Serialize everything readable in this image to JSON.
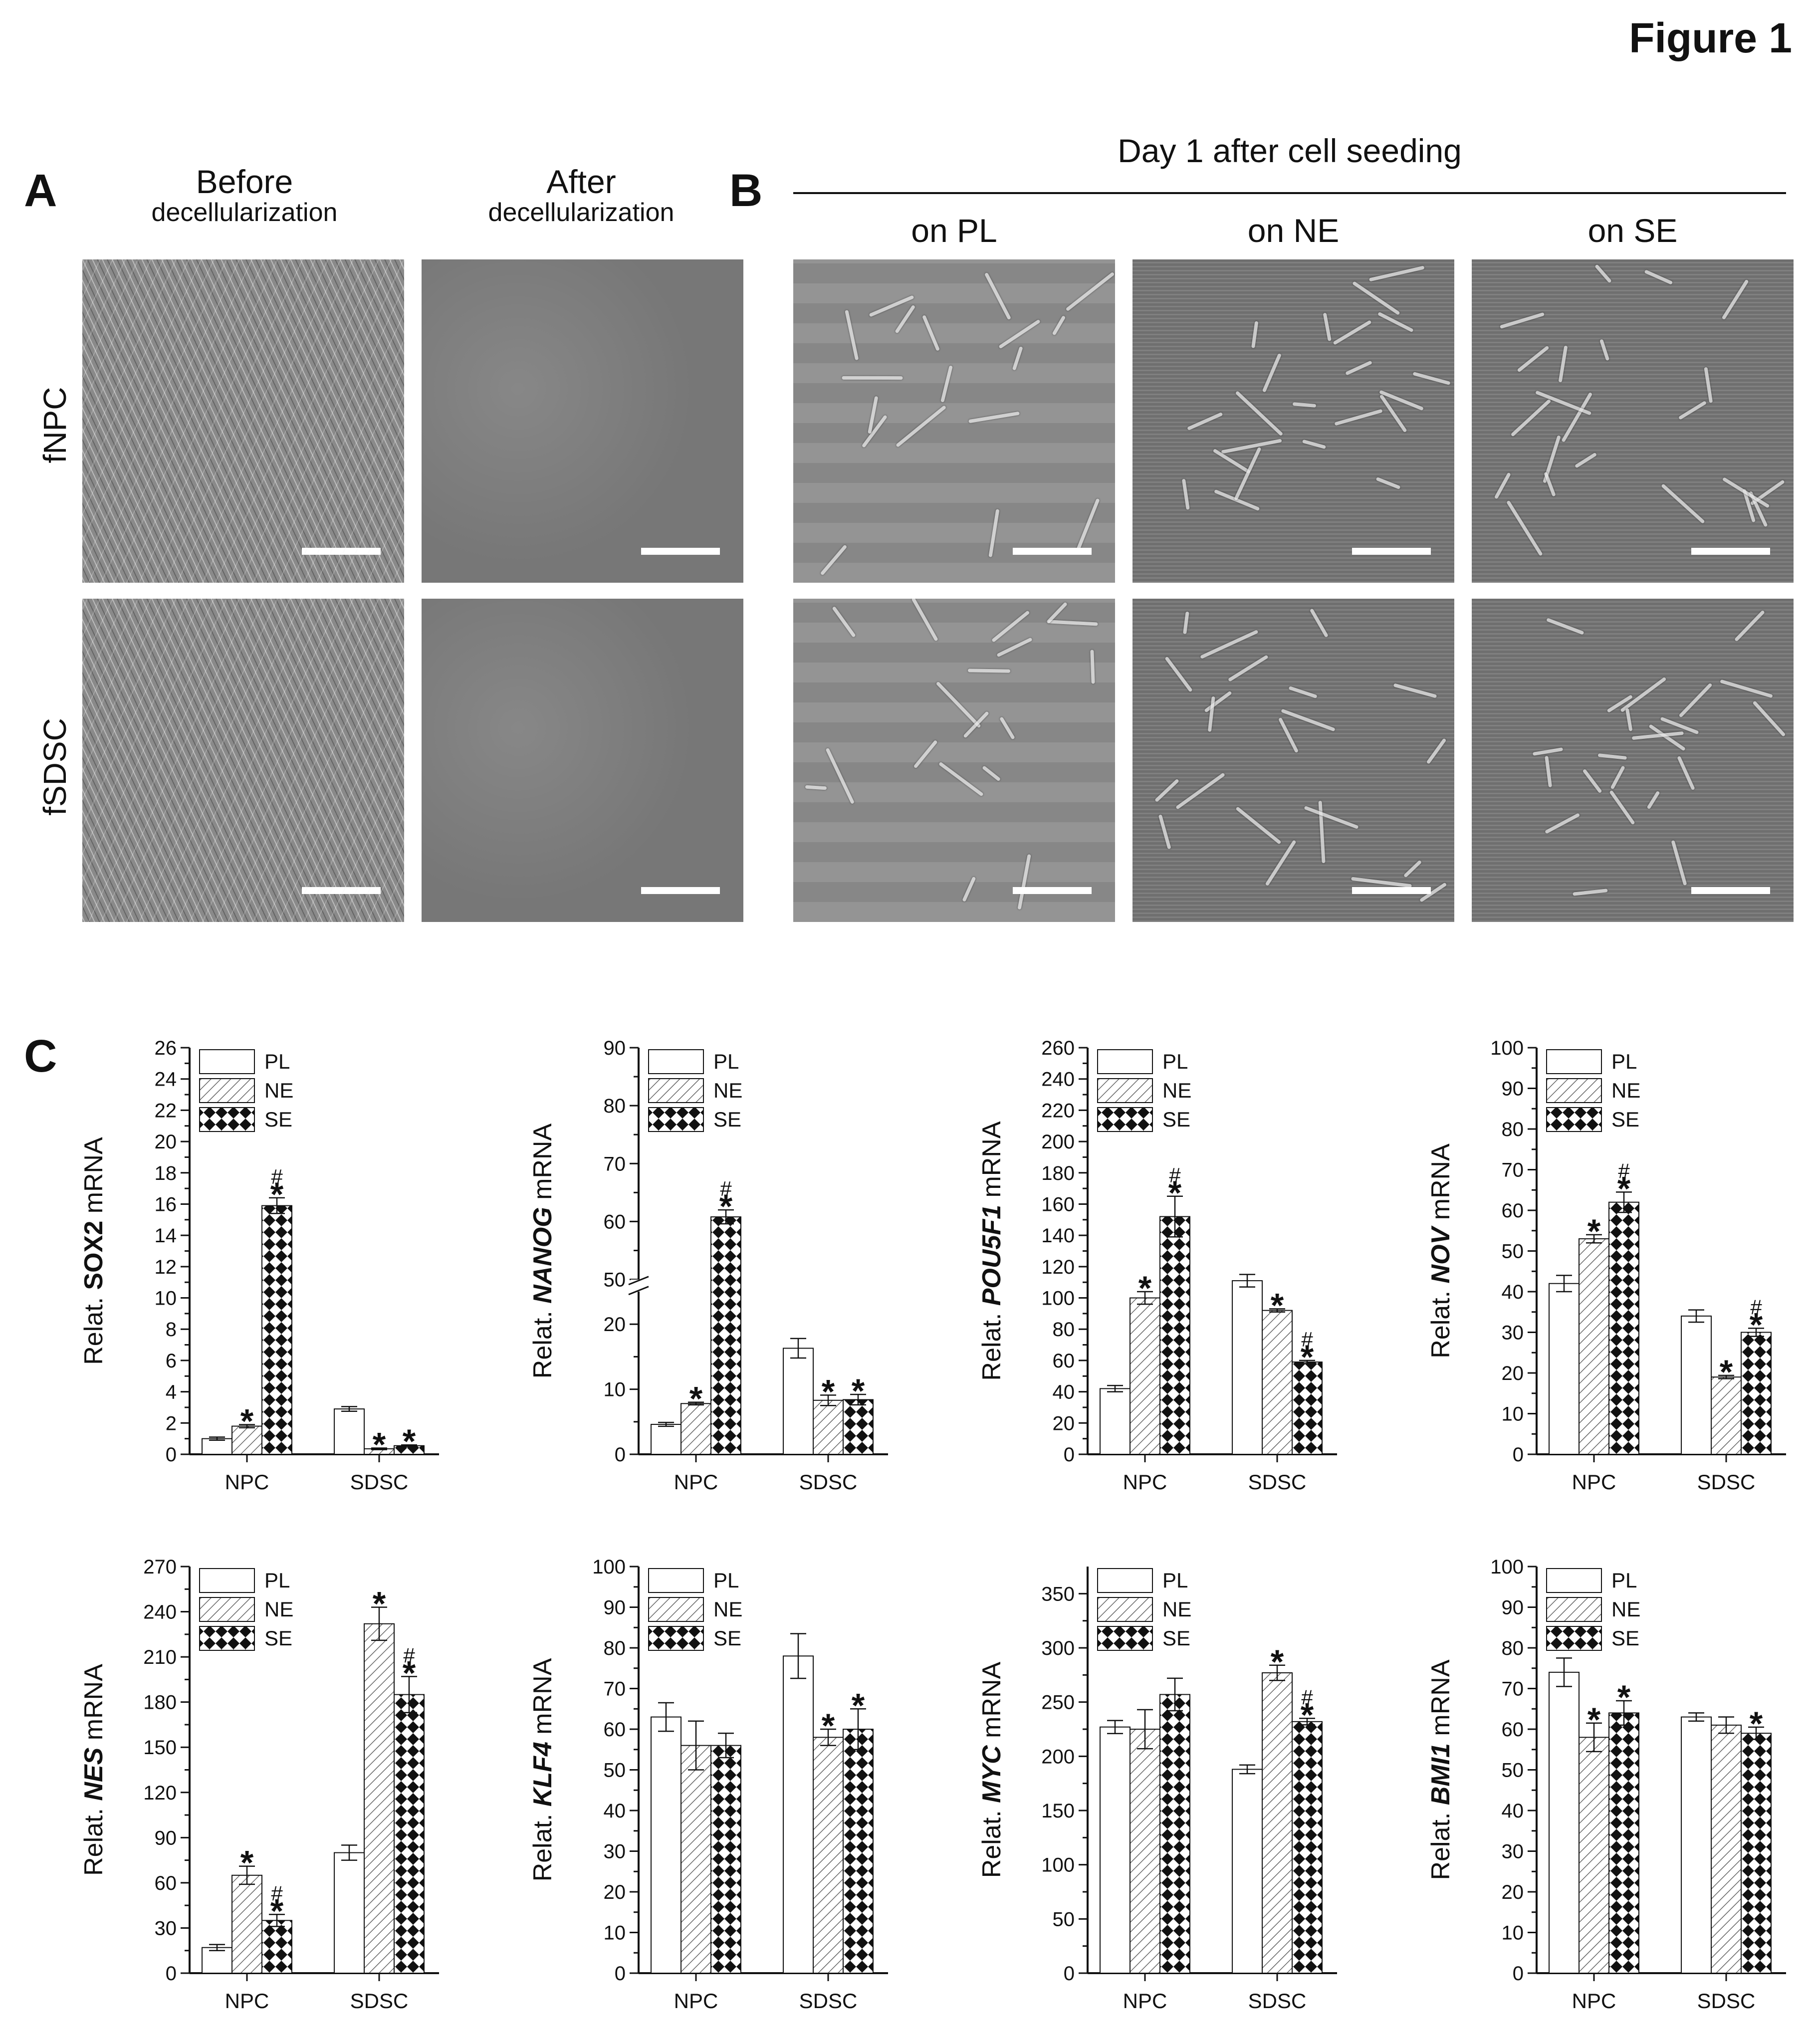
{
  "figure": {
    "title": "Figure 1"
  },
  "panel_a": {
    "letter": "A",
    "columns": [
      {
        "title": "Before",
        "subtitle": "decellularization"
      },
      {
        "title": "After",
        "subtitle": "decellularization"
      }
    ],
    "rows": [
      "fNPC",
      "fSDSC"
    ]
  },
  "panel_b": {
    "letter": "B",
    "header": "Day 1 after cell seeding",
    "columns": [
      "on PL",
      "on NE",
      "on SE"
    ]
  },
  "panel_c": {
    "letter": "C"
  },
  "chart_data": [
    {
      "type": "bar",
      "gene": "SOX2",
      "gene_italic": false,
      "ylabel_prefix": "Relat. ",
      "ylabel_suffix": " mRNA",
      "categories": [
        "NPC",
        "SDSC"
      ],
      "series": [
        {
          "name": "PL",
          "values": [
            1.0,
            2.9
          ],
          "errors": [
            0.1,
            0.15
          ]
        },
        {
          "name": "NE",
          "values": [
            1.8,
            0.35
          ],
          "errors": [
            0.1,
            0.05
          ]
        },
        {
          "name": "SE",
          "values": [
            15.9,
            0.55
          ],
          "errors": [
            0.5,
            0.05
          ]
        }
      ],
      "ylim": [
        0,
        26
      ],
      "yticks": [
        "0",
        "2",
        "4",
        "6",
        "8",
        "10",
        "12",
        "14",
        "16",
        "18",
        "20",
        "22",
        "24",
        "26"
      ],
      "annotations": [
        [
          "",
          ""
        ],
        [
          "*",
          "*"
        ],
        [
          "#*",
          "*"
        ]
      ]
    },
    {
      "type": "bar",
      "gene": "NANOG",
      "gene_italic": true,
      "ylabel_prefix": "Relat. ",
      "ylabel_suffix": " mRNA",
      "categories": [
        "NPC",
        "SDSC"
      ],
      "series": [
        {
          "name": "PL",
          "values": [
            4.6,
            16.3
          ],
          "errors": [
            0.3,
            1.5
          ]
        },
        {
          "name": "NE",
          "values": [
            7.8,
            8.3
          ],
          "errors": [
            0.2,
            0.8
          ]
        },
        {
          "name": "SE",
          "values": [
            60.8,
            8.4
          ],
          "errors": [
            1.2,
            0.8
          ]
        }
      ],
      "ylim": [
        0,
        90
      ],
      "axis_break": {
        "from": 25,
        "to": 50
      },
      "yticks": [
        "0",
        "10",
        "20",
        "50",
        "60",
        "70",
        "80",
        "90"
      ],
      "annotations": [
        [
          "",
          ""
        ],
        [
          "*",
          "*"
        ],
        [
          "#*",
          "*"
        ]
      ]
    },
    {
      "type": "bar",
      "gene": "POU5F1",
      "gene_italic": true,
      "ylabel_prefix": "Relat. ",
      "ylabel_suffix": " mRNA",
      "categories": [
        "NPC",
        "SDSC"
      ],
      "series": [
        {
          "name": "PL",
          "values": [
            42,
            111
          ],
          "errors": [
            2,
            4
          ]
        },
        {
          "name": "NE",
          "values": [
            100,
            92
          ],
          "errors": [
            4,
            1
          ]
        },
        {
          "name": "SE",
          "values": [
            152,
            59
          ],
          "errors": [
            13,
            1
          ]
        }
      ],
      "ylim": [
        0,
        260
      ],
      "yticks": [
        "0",
        "20",
        "40",
        "60",
        "80",
        "100",
        "120",
        "140",
        "160",
        "180",
        "200",
        "220",
        "240",
        "260"
      ],
      "annotations": [
        [
          "",
          ""
        ],
        [
          "*",
          "*"
        ],
        [
          "#*",
          "#*"
        ]
      ]
    },
    {
      "type": "bar",
      "gene": "NOV",
      "gene_italic": true,
      "ylabel_prefix": "Relat. ",
      "ylabel_suffix": " mRNA",
      "categories": [
        "NPC",
        "SDSC"
      ],
      "series": [
        {
          "name": "PL",
          "values": [
            42,
            34
          ],
          "errors": [
            2,
            1.5
          ]
        },
        {
          "name": "NE",
          "values": [
            53,
            19
          ],
          "errors": [
            1,
            0.4
          ]
        },
        {
          "name": "SE",
          "values": [
            62,
            30
          ],
          "errors": [
            2.5,
            1
          ]
        }
      ],
      "ylim": [
        0,
        100
      ],
      "yticks": [
        "0",
        "10",
        "20",
        "30",
        "40",
        "50",
        "60",
        "70",
        "80",
        "90",
        "100"
      ],
      "annotations": [
        [
          "",
          ""
        ],
        [
          "*",
          "*"
        ],
        [
          "#*",
          "#*"
        ]
      ]
    },
    {
      "type": "bar",
      "gene": "NES",
      "gene_italic": true,
      "ylabel_prefix": "Relat. ",
      "ylabel_suffix": " mRNA",
      "categories": [
        "NPC",
        "SDSC"
      ],
      "series": [
        {
          "name": "PL",
          "values": [
            17,
            80
          ],
          "errors": [
            2,
            5
          ]
        },
        {
          "name": "NE",
          "values": [
            65,
            232
          ],
          "errors": [
            6,
            11
          ]
        },
        {
          "name": "SE",
          "values": [
            35,
            185
          ],
          "errors": [
            4,
            12
          ]
        }
      ],
      "ylim": [
        0,
        270
      ],
      "yticks": [
        "0",
        "30",
        "60",
        "90",
        "120",
        "150",
        "180",
        "210",
        "240",
        "270"
      ],
      "annotations": [
        [
          "",
          ""
        ],
        [
          "*",
          "*"
        ],
        [
          "#*",
          "#*"
        ]
      ]
    },
    {
      "type": "bar",
      "gene": "KLF4",
      "gene_italic": true,
      "ylabel_prefix": "Relat. ",
      "ylabel_suffix": " mRNA",
      "categories": [
        "NPC",
        "SDSC"
      ],
      "series": [
        {
          "name": "PL",
          "values": [
            63,
            78
          ],
          "errors": [
            3.5,
            5.5
          ]
        },
        {
          "name": "NE",
          "values": [
            56,
            58
          ],
          "errors": [
            6,
            2
          ]
        },
        {
          "name": "SE",
          "values": [
            56,
            60
          ],
          "errors": [
            3,
            5
          ]
        }
      ],
      "ylim": [
        0,
        100
      ],
      "yticks": [
        "0",
        "10",
        "20",
        "30",
        "40",
        "50",
        "60",
        "70",
        "80",
        "90",
        "100"
      ],
      "annotations": [
        [
          "",
          ""
        ],
        [
          "",
          "*"
        ],
        [
          "",
          "*"
        ]
      ]
    },
    {
      "type": "bar",
      "gene": "MYC",
      "gene_italic": true,
      "ylabel_prefix": "Relat. ",
      "ylabel_suffix": " mRNA",
      "categories": [
        "NPC",
        "SDSC"
      ],
      "series": [
        {
          "name": "PL",
          "values": [
            227,
            188
          ],
          "errors": [
            6,
            4
          ]
        },
        {
          "name": "NE",
          "values": [
            225,
            277
          ],
          "errors": [
            18,
            7
          ]
        },
        {
          "name": "SE",
          "values": [
            257,
            232
          ],
          "errors": [
            15,
            3
          ]
        }
      ],
      "ylim": [
        0,
        375
      ],
      "yticks": [
        "0",
        "50",
        "100",
        "150",
        "200",
        "250",
        "300",
        "350"
      ],
      "ytick_values": [
        0,
        50,
        100,
        150,
        200,
        250,
        300,
        350
      ],
      "annotations": [
        [
          "",
          ""
        ],
        [
          "",
          "*"
        ],
        [
          "",
          "#*"
        ]
      ]
    },
    {
      "type": "bar",
      "gene": "BMI1",
      "gene_italic": true,
      "ylabel_prefix": "Relat. ",
      "ylabel_suffix": " mRNA",
      "categories": [
        "NPC",
        "SDSC"
      ],
      "series": [
        {
          "name": "PL",
          "values": [
            74,
            63
          ],
          "errors": [
            3.5,
            1
          ]
        },
        {
          "name": "NE",
          "values": [
            58,
            61
          ],
          "errors": [
            3.5,
            2
          ]
        },
        {
          "name": "SE",
          "values": [
            64,
            59
          ],
          "errors": [
            3,
            1.5
          ]
        }
      ],
      "ylim": [
        0,
        100
      ],
      "yticks": [
        "0",
        "10",
        "20",
        "30",
        "40",
        "50",
        "60",
        "70",
        "80",
        "90",
        "100"
      ],
      "annotations": [
        [
          "",
          ""
        ],
        [
          "*",
          ""
        ],
        [
          "*",
          "*"
        ]
      ]
    }
  ]
}
